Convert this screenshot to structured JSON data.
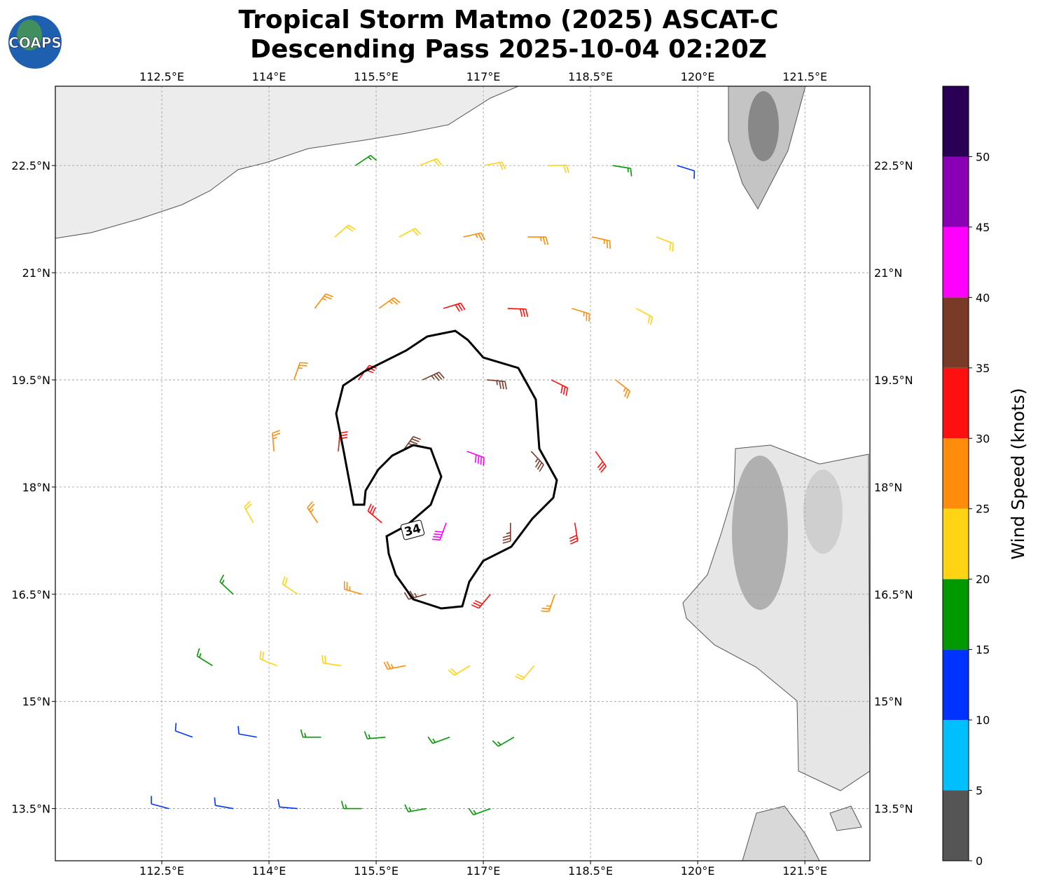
{
  "logo": "COAPS",
  "title": [
    "Tropical Storm Matmo (2025) ASCAT-C",
    "Descending Pass 2025-10-04 02:20Z"
  ],
  "map": {
    "xlim": [
      111.01,
      122.41
    ],
    "ylim": [
      12.77,
      23.61
    ],
    "grid": true,
    "xticks": [
      {
        "value": 112.5,
        "label": "112.5°E"
      },
      {
        "value": 114,
        "label": "114°E"
      },
      {
        "value": 115.5,
        "label": "115.5°E"
      },
      {
        "value": 117,
        "label": "117°E"
      },
      {
        "value": 118.5,
        "label": "118.5°E"
      },
      {
        "value": 120,
        "label": "120°E"
      },
      {
        "value": 121.5,
        "label": "121.5°E"
      }
    ],
    "yticks": [
      {
        "value": 13.5,
        "label": "13.5°N"
      },
      {
        "value": 15,
        "label": "15°N"
      },
      {
        "value": 16.5,
        "label": "16.5°N"
      },
      {
        "value": 18,
        "label": "18°N"
      },
      {
        "value": 19.5,
        "label": "19.5°N"
      },
      {
        "value": 21,
        "label": "21°N"
      },
      {
        "value": 22.5,
        "label": "22.5°N"
      }
    ]
  },
  "barbs": {
    "lon": [
      112.6,
      113.5,
      114.4,
      115.3,
      116.2,
      117.1,
      112.93,
      113.83,
      114.73,
      115.63,
      116.53,
      117.43,
      113.21,
      114.11,
      115.01,
      115.91,
      116.81,
      117.71,
      113.5,
      114.4,
      115.3,
      116.2,
      117.1,
      118.0,
      113.78,
      114.68,
      115.58,
      116.48,
      117.38,
      118.28,
      114.07,
      114.97,
      115.87,
      116.77,
      117.67,
      118.57,
      114.35,
      115.25,
      116.15,
      117.05,
      117.95,
      118.85,
      114.64,
      115.54,
      116.44,
      117.34,
      118.24,
      119.14,
      114.92,
      115.82,
      116.72,
      117.62,
      118.52,
      119.42,
      115.21,
      116.11,
      117.01,
      117.91,
      118.81,
      119.71
    ],
    "lat": [
      13.5,
      13.5,
      13.5,
      13.5,
      13.5,
      13.5,
      14.5,
      14.5,
      14.5,
      14.5,
      14.5,
      14.5,
      15.5,
      15.5,
      15.5,
      15.5,
      15.5,
      15.5,
      16.5,
      16.5,
      16.5,
      16.5,
      16.5,
      16.5,
      17.5,
      17.5,
      17.5,
      17.5,
      17.5,
      17.5,
      18.5,
      18.5,
      18.5,
      18.5,
      18.5,
      18.5,
      19.5,
      19.5,
      19.5,
      19.5,
      19.5,
      19.5,
      20.5,
      20.5,
      20.5,
      20.5,
      20.5,
      20.5,
      21.5,
      21.5,
      21.5,
      21.5,
      21.5,
      21.5,
      22.5,
      22.5,
      22.5,
      22.5,
      22.5,
      22.5
    ],
    "speed": [
      12,
      13,
      14,
      17,
      18,
      17,
      12,
      14,
      17,
      18,
      19,
      18,
      17,
      21,
      24,
      26,
      24,
      22,
      18,
      23,
      28,
      36,
      32,
      27,
      22,
      28,
      33,
      42,
      37,
      31,
      26,
      33,
      37,
      42,
      37,
      32,
      27,
      33,
      36,
      36,
      33,
      28,
      27,
      28,
      31,
      31,
      28,
      24,
      22,
      24,
      27,
      27,
      27,
      24,
      18,
      22,
      22,
      22,
      16,
      13
    ],
    "direction": [
      285,
      280,
      275,
      270,
      260,
      250,
      290,
      280,
      270,
      265,
      250,
      240,
      302,
      292,
      278,
      259,
      238,
      220,
      313,
      304,
      286,
      254,
      220,
      199,
      331,
      326,
      310,
      200,
      180,
      171,
      355,
      5,
      36,
      110,
      137,
      145,
      19,
      37,
      65,
      95,
      116,
      128,
      37,
      54,
      73,
      92,
      107,
      118,
      49,
      62,
      77,
      90,
      102,
      111,
      56,
      68,
      79,
      89,
      99,
      107
    ]
  },
  "contour_label": 34,
  "colorbar": {
    "label": "Wind Speed (knots)",
    "lim": [
      0,
      55
    ],
    "ticks": [
      0,
      5,
      10,
      15,
      20,
      25,
      30,
      35,
      40,
      45,
      50
    ],
    "colors": [
      "#555555",
      "#00bfff",
      "#0033ff",
      "#009900",
      "#ffd414",
      "#ff8c0a",
      "#ff1010",
      "#7a3a28",
      "#ff00ff",
      "#8a00b4",
      "#2a0055"
    ]
  }
}
